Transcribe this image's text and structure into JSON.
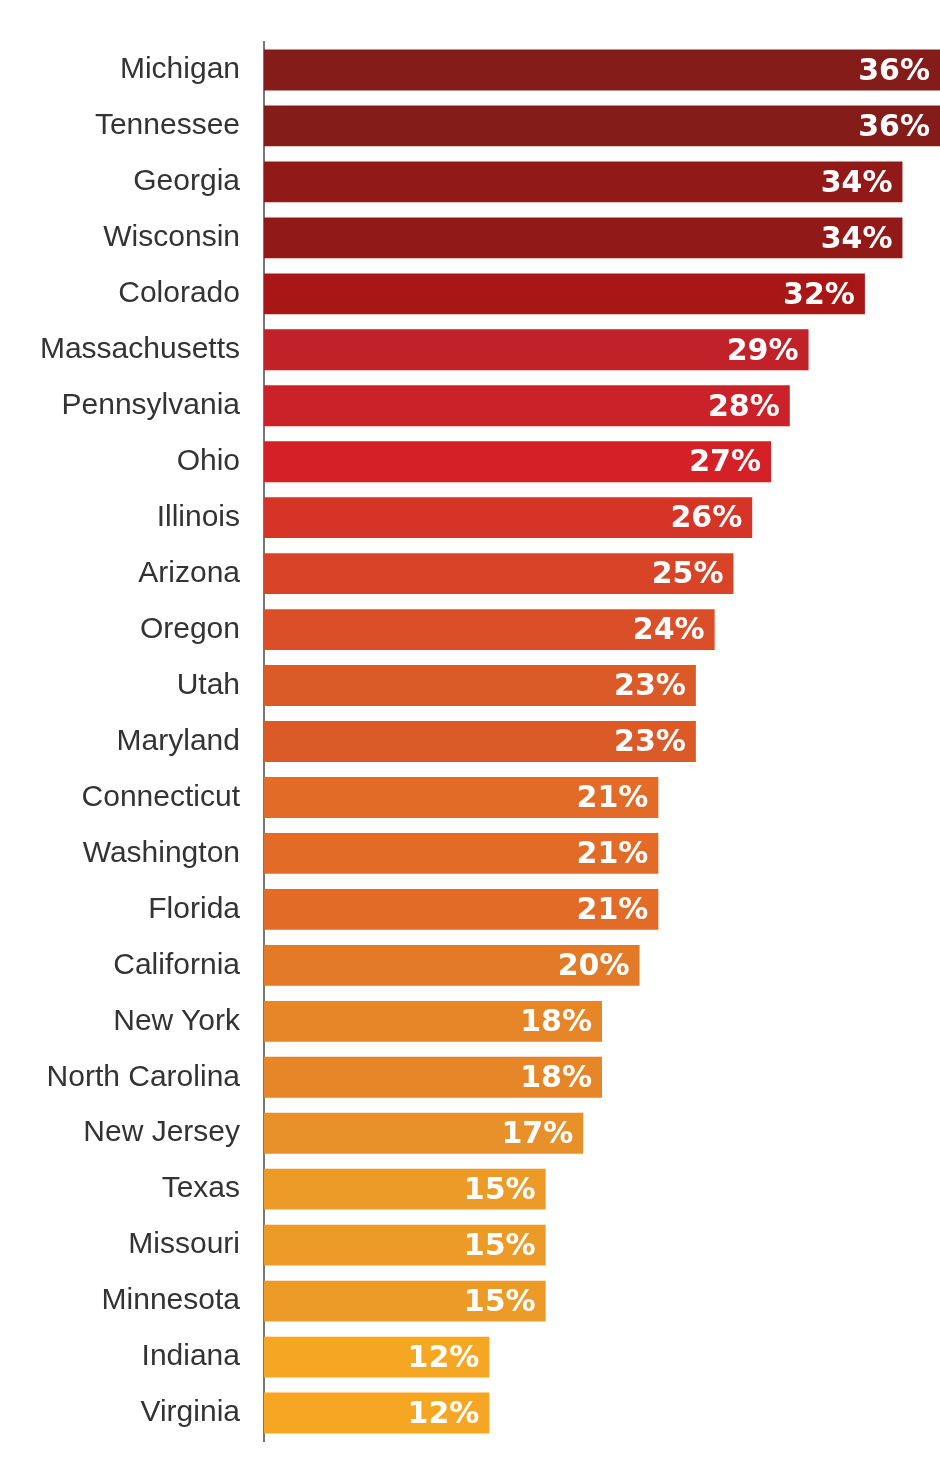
{
  "chart_data": {
    "type": "bar",
    "orientation": "horizontal",
    "tick_labels": "y",
    "legend": false,
    "categories": [
      "Michigan",
      "Tennessee",
      "Georgia",
      "Wisconsin",
      "Colorado",
      "Massachusetts",
      "Pennsylvania",
      "Ohio",
      "Illinois",
      "Arizona",
      "Oregon",
      "Utah",
      "Maryland",
      "Connecticut",
      "Washington",
      "Florida",
      "California",
      "New York",
      "North Carolina",
      "New Jersey",
      "Texas",
      "Missouri",
      "Minnesota",
      "Indiana",
      "Virginia"
    ],
    "values": [
      36,
      36,
      34,
      34,
      32,
      29,
      28,
      27,
      26,
      25,
      24,
      23,
      23,
      21,
      21,
      21,
      20,
      18,
      18,
      17,
      15,
      15,
      15,
      12,
      12
    ],
    "value_labels": [
      "36%",
      "36%",
      "34%",
      "34%",
      "32%",
      "29%",
      "28%",
      "27%",
      "26%",
      "25%",
      "24%",
      "23%",
      "23%",
      "21%",
      "21%",
      "21%",
      "20%",
      "18%",
      "18%",
      "17%",
      "15%",
      "15%",
      "15%",
      "12%",
      "12%"
    ],
    "colors": [
      "#841c1a",
      "#841c1a",
      "#911a19",
      "#911a19",
      "#a81716",
      "#c1222a",
      "#cb2229",
      "#d42026",
      "#d63427",
      "#d94428",
      "#da4f28",
      "#da5b28",
      "#da5b28",
      "#e26b27",
      "#e26b27",
      "#e26b27",
      "#e27a28",
      "#e68628",
      "#e68628",
      "#e8912a",
      "#ec9a28",
      "#ec9a28",
      "#ec9a28",
      "#f5a623",
      "#f5a623"
    ],
    "xlim": [
      0,
      36
    ]
  }
}
